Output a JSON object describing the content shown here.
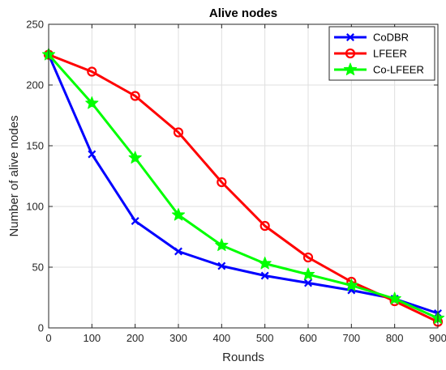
{
  "chart_data": {
    "type": "line",
    "title": "Alive nodes",
    "xlabel": "Rounds",
    "ylabel": "Number of alive nodes",
    "xlim": [
      0,
      900
    ],
    "ylim": [
      0,
      250
    ],
    "x_ticks": [
      "0",
      "100",
      "200",
      "300",
      "400",
      "500",
      "600",
      "700",
      "800",
      "900"
    ],
    "y_ticks": [
      "0",
      "50",
      "100",
      "150",
      "200",
      "250"
    ],
    "grid": true,
    "legend_position": "top-right",
    "x": [
      0,
      100,
      200,
      300,
      400,
      500,
      600,
      700,
      800,
      900
    ],
    "series": [
      {
        "name": "CoDBR",
        "color": "#0000ff",
        "marker": "x",
        "values": [
          225,
          143,
          88,
          63,
          51,
          43,
          37,
          31,
          24,
          12
        ]
      },
      {
        "name": "LFEER",
        "color": "#ff0000",
        "marker": "circle",
        "values": [
          225,
          211,
          191,
          161,
          120,
          84,
          58,
          38,
          22,
          5
        ]
      },
      {
        "name": "Co-LFEER",
        "color": "#00ff00",
        "marker": "star",
        "values": [
          225,
          185,
          140,
          93,
          68,
          53,
          44,
          35,
          24,
          8
        ]
      }
    ]
  }
}
